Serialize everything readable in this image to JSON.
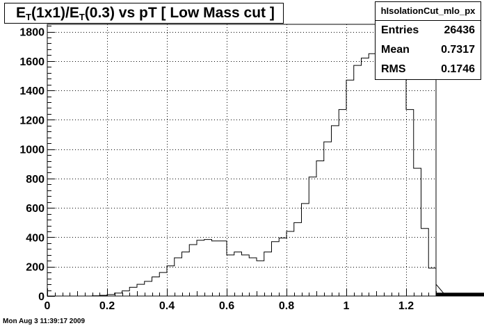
{
  "title": {
    "pre": "E",
    "sub1": "T",
    "mid": "(1x1)/E",
    "sub2": "T",
    "post": "(0.3) vs pT [ Low Mass cut ]"
  },
  "stats": {
    "name": "hIsolationCut_mlo_px",
    "rows": [
      {
        "label": "Entries",
        "value": "26436"
      },
      {
        "label": "Mean",
        "value": "0.7317"
      },
      {
        "label": "RMS",
        "value": "0.1746"
      }
    ]
  },
  "timestamp": "Mon Aug  3 11:39:17 2009",
  "chart_data": {
    "type": "bar",
    "style": "step-histogram",
    "xlim": [
      0,
      1.3
    ],
    "ylim": [
      0,
      1850
    ],
    "bin_width": 0.025,
    "grid": true,
    "x_ticks": [
      0,
      0.2,
      0.4,
      0.6,
      0.8,
      1,
      1.2
    ],
    "x_tick_labels": [
      "0",
      "0.2",
      "0.4",
      "0.6",
      "0.8",
      "1",
      "1.2"
    ],
    "y_ticks": [
      0,
      200,
      400,
      600,
      800,
      1000,
      1200,
      1400,
      1600,
      1800
    ],
    "y_tick_labels": [
      "0",
      "200",
      "400",
      "600",
      "800",
      "1000",
      "1200",
      "1400",
      "1600",
      "1800"
    ],
    "values": [
      0,
      0,
      0,
      0,
      0,
      0,
      2,
      5,
      10,
      20,
      35,
      60,
      80,
      100,
      130,
      160,
      205,
      260,
      300,
      350,
      380,
      385,
      375,
      375,
      280,
      300,
      280,
      260,
      240,
      300,
      370,
      395,
      440,
      500,
      630,
      810,
      920,
      1050,
      1160,
      1270,
      1470,
      1570,
      1620,
      1650,
      1690,
      1730,
      1690,
      1580,
      1270,
      870,
      460,
      190,
      80,
      20,
      5,
      12,
      10,
      8,
      6,
      8,
      15,
      4,
      14,
      20,
      18,
      15,
      3,
      2,
      1,
      0,
      0,
      0
    ]
  }
}
